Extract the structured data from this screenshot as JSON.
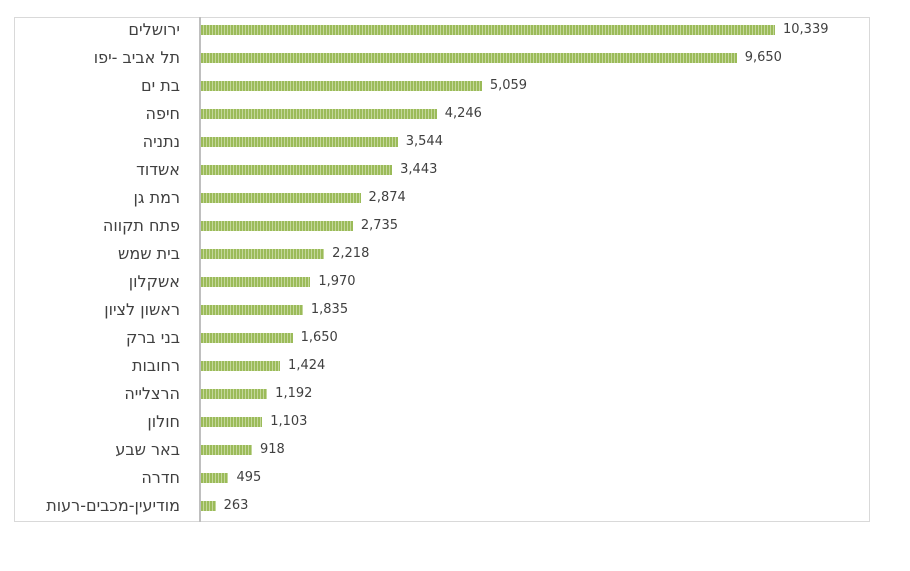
{
  "chart_data": {
    "type": "bar",
    "orientation": "horizontal",
    "categories": [
      "ירושלים",
      "תל אביב -יפו",
      "בת ים",
      "חיפה",
      "נתניה",
      "אשדוד",
      "רמת גן",
      "פתח תקווה",
      "בית שמש",
      "אשקלון",
      "ראשון לציון",
      "בני ברק",
      "רחובות",
      "הרצלייה",
      "חולון",
      "באר שבע",
      "חדרה",
      "מודיעין-מכבים-רעות"
    ],
    "values": [
      10339,
      9650,
      5059,
      4246,
      3544,
      3443,
      2874,
      2735,
      2218,
      1970,
      1835,
      1650,
      1424,
      1192,
      1103,
      918,
      495,
      263
    ],
    "value_labels": [
      "10,339",
      "9,650",
      "5,059",
      "4,246",
      "3,544",
      "3,443",
      "2,874",
      "2,735",
      "2,218",
      "1,970",
      "1,835",
      "1,650",
      "1,424",
      "1,192",
      "1,103",
      "918",
      "495",
      "263"
    ],
    "xlim": [
      0,
      10339
    ],
    "grid": false,
    "bar_color": "#9bbb59"
  }
}
